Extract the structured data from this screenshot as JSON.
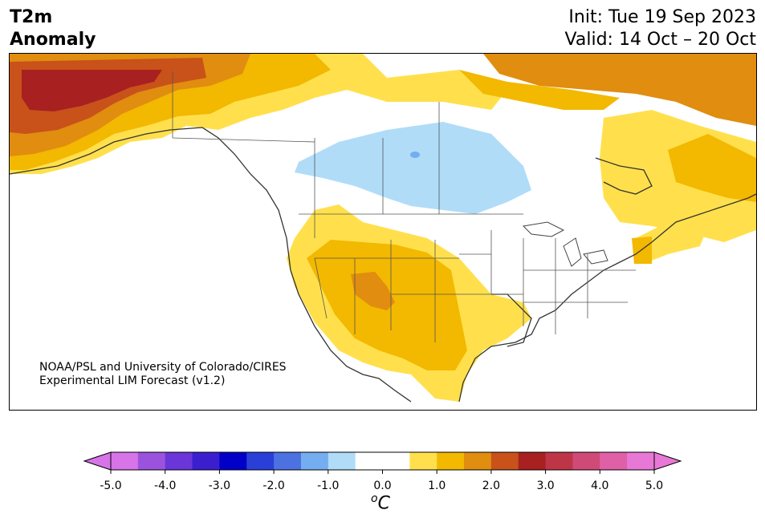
{
  "header": {
    "title_line1": "T2m",
    "title_line2": "Anomaly",
    "init": "Init: Tue 19 Sep 2023",
    "valid": "Valid: 14 Oct – 20 Oct"
  },
  "credit": {
    "line1": "NOAA/PSL and University of Colorado/CIRES",
    "line2": "Experimental LIM Forecast (v1.2)"
  },
  "colorbar": {
    "unit_base": "C",
    "unit_sup": "o",
    "ticks": [
      "-5.0",
      "-4.0",
      "-3.0",
      "-2.0",
      "-1.0",
      "0.0",
      "1.0",
      "2.0",
      "3.0",
      "4.0",
      "5.0"
    ],
    "colors": [
      "#d774e8",
      "#9b53de",
      "#6a35d9",
      "#3b1fcf",
      "#0000c8",
      "#2a3fd8",
      "#4b72e0",
      "#74aef0",
      "#b0dcf8",
      "#ffffff",
      "#ffffff",
      "#ffe04c",
      "#f3b800",
      "#e08d10",
      "#c8521a",
      "#a82020",
      "#bf3548",
      "#d04a78",
      "#e060a8",
      "#e878d6"
    ],
    "under_color": "#d774e8",
    "over_color": "#e878d6"
  },
  "legend_colors": {
    "anom_0_5_1": "#ffe04c",
    "anom_1_1_5": "#f3b800",
    "anom_1_5_2": "#e08d10",
    "anom_2_2_5": "#c8521a",
    "anom_2_5_3": "#a82020",
    "anom_neg_0_5_1": "#b0dcf8",
    "anom_neg_1_1_5": "#74aef0"
  }
}
